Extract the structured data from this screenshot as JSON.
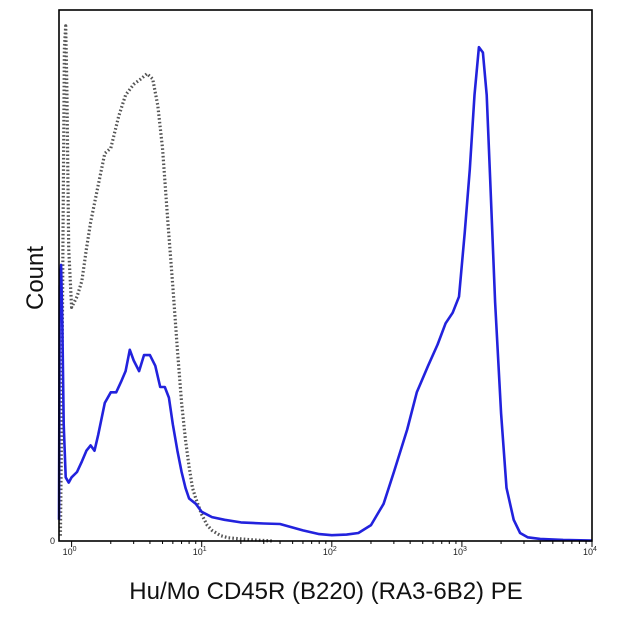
{
  "chart_data": {
    "type": "line",
    "xlabel": "Hu/Mo CD45R (B220) (RA3-6B2) PE",
    "ylabel": "Count",
    "x_scale": "log",
    "xlim": [
      0.8,
      10000
    ],
    "ylim": [
      0,
      100
    ],
    "y_tick_labels": [
      "0"
    ],
    "x_ticks": [
      {
        "base": "10",
        "exp": "0",
        "value": 1
      },
      {
        "base": "10",
        "exp": "1",
        "value": 10
      },
      {
        "base": "10",
        "exp": "2",
        "value": 100
      },
      {
        "base": "10",
        "exp": "3",
        "value": 1000
      },
      {
        "base": "10",
        "exp": "4",
        "value": 10000
      }
    ],
    "grid": false,
    "legend": "none",
    "series": [
      {
        "style": "dotted",
        "color": "#555555",
        "points": [
          [
            0.82,
            1
          ],
          [
            0.84,
            25
          ],
          [
            0.86,
            60
          ],
          [
            0.88,
            93
          ],
          [
            0.9,
            97
          ],
          [
            0.92,
            85
          ],
          [
            0.95,
            55
          ],
          [
            1.0,
            44
          ],
          [
            1.1,
            46
          ],
          [
            1.2,
            49
          ],
          [
            1.3,
            55
          ],
          [
            1.4,
            60
          ],
          [
            1.6,
            67
          ],
          [
            1.8,
            73
          ],
          [
            2.0,
            74
          ],
          [
            2.3,
            80
          ],
          [
            2.6,
            84
          ],
          [
            3.0,
            86
          ],
          [
            3.4,
            87
          ],
          [
            3.8,
            88
          ],
          [
            4.2,
            87
          ],
          [
            4.6,
            82
          ],
          [
            5.0,
            74
          ],
          [
            5.5,
            60
          ],
          [
            6.0,
            48
          ],
          [
            6.5,
            36
          ],
          [
            7.0,
            26
          ],
          [
            7.5,
            19
          ],
          [
            8.0,
            14
          ],
          [
            8.5,
            10
          ],
          [
            9.0,
            8
          ],
          [
            10.0,
            5
          ],
          [
            11.0,
            3
          ],
          [
            12.0,
            2
          ],
          [
            14.0,
            1
          ],
          [
            16.0,
            0.6
          ],
          [
            20.0,
            0.4
          ],
          [
            25.0,
            0.2
          ],
          [
            30.0,
            0.1
          ],
          [
            35.0,
            0
          ]
        ]
      },
      {
        "style": "solid",
        "color": "#2222dd",
        "points": [
          [
            0.8,
            4
          ],
          [
            0.81,
            48
          ],
          [
            0.83,
            52
          ],
          [
            0.85,
            40
          ],
          [
            0.87,
            22
          ],
          [
            0.9,
            12
          ],
          [
            0.95,
            11
          ],
          [
            1.0,
            12
          ],
          [
            1.1,
            13
          ],
          [
            1.2,
            15
          ],
          [
            1.3,
            17
          ],
          [
            1.4,
            18
          ],
          [
            1.5,
            17
          ],
          [
            1.6,
            20
          ],
          [
            1.8,
            26
          ],
          [
            2.0,
            28
          ],
          [
            2.2,
            28
          ],
          [
            2.4,
            30
          ],
          [
            2.6,
            32
          ],
          [
            2.8,
            36
          ],
          [
            3.0,
            34
          ],
          [
            3.3,
            32
          ],
          [
            3.6,
            35
          ],
          [
            4.0,
            35
          ],
          [
            4.4,
            33
          ],
          [
            4.8,
            29
          ],
          [
            5.2,
            29
          ],
          [
            5.6,
            27
          ],
          [
            6.0,
            22
          ],
          [
            6.5,
            17
          ],
          [
            7.0,
            13
          ],
          [
            7.5,
            10
          ],
          [
            8.0,
            8
          ],
          [
            9.0,
            7
          ],
          [
            10.0,
            5.5
          ],
          [
            12.0,
            4.5
          ],
          [
            15.0,
            4
          ],
          [
            20.0,
            3.5
          ],
          [
            30.0,
            3.3
          ],
          [
            40.0,
            3.2
          ],
          [
            60.0,
            2
          ],
          [
            80.0,
            1.3
          ],
          [
            100.0,
            1.1
          ],
          [
            130.0,
            1.2
          ],
          [
            160.0,
            1.5
          ],
          [
            200.0,
            3
          ],
          [
            250.0,
            7
          ],
          [
            300.0,
            13
          ],
          [
            380.0,
            21
          ],
          [
            450.0,
            28
          ],
          [
            550.0,
            33
          ],
          [
            650.0,
            37
          ],
          [
            750.0,
            41
          ],
          [
            850.0,
            43
          ],
          [
            950.0,
            46
          ],
          [
            1050.0,
            58
          ],
          [
            1150.0,
            70
          ],
          [
            1250.0,
            84
          ],
          [
            1350.0,
            93
          ],
          [
            1450.0,
            92
          ],
          [
            1550.0,
            84
          ],
          [
            1650.0,
            68
          ],
          [
            1800.0,
            45
          ],
          [
            2000.0,
            24
          ],
          [
            2200.0,
            10
          ],
          [
            2500.0,
            4
          ],
          [
            2800.0,
            1.5
          ],
          [
            3200.0,
            0.7
          ],
          [
            4000.0,
            0.4
          ],
          [
            6000.0,
            0.2
          ],
          [
            10000.0,
            0.1
          ]
        ]
      }
    ]
  }
}
